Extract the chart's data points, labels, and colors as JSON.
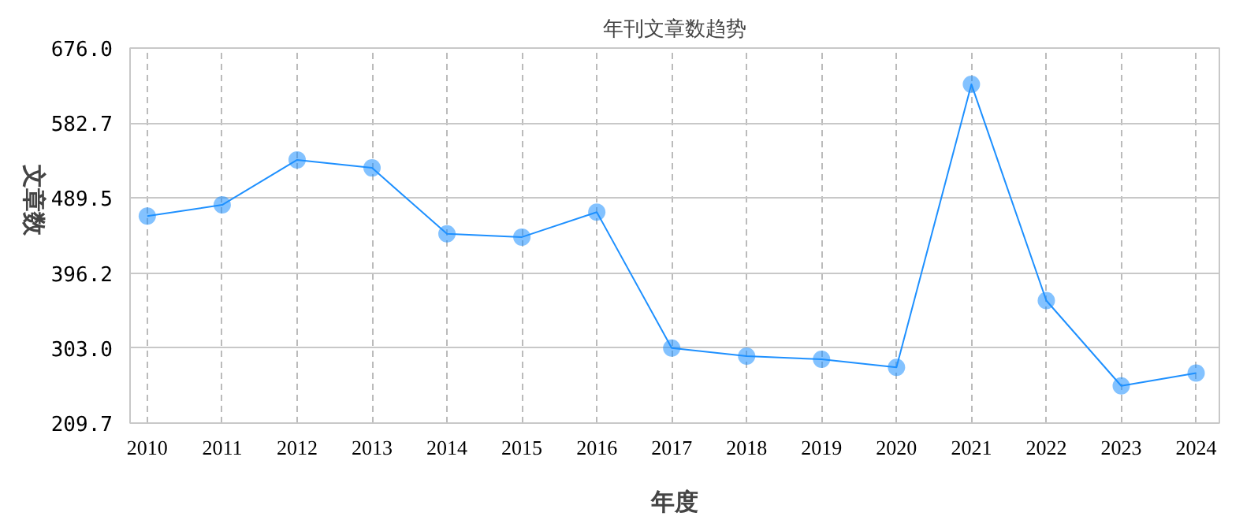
{
  "chart_data": {
    "type": "line",
    "title": "年刊文章数趋势",
    "xlabel": "年度",
    "ylabel": "文章数",
    "x": [
      2010,
      2011,
      2012,
      2013,
      2014,
      2015,
      2016,
      2017,
      2018,
      2019,
      2020,
      2021,
      2022,
      2023,
      2024
    ],
    "series": [
      {
        "color": "#1e90ff",
        "values": [
          467,
          481,
          537,
          527,
          445,
          441,
          472,
          303,
          293,
          289,
          279,
          631,
          362,
          256,
          272
        ]
      }
    ],
    "xlim": [
      2009.77,
      2024.31
    ],
    "xticks": [
      2010,
      2011,
      2012,
      2013,
      2014,
      2015,
      2016,
      2017,
      2018,
      2019,
      2020,
      2021,
      2022,
      2023,
      2024
    ],
    "ylim": [
      209.7,
      676.0
    ],
    "yticks": [
      {
        "value": 209.7,
        "label": "209.7"
      },
      {
        "value": 303.0,
        "label": "303.0"
      },
      {
        "value": 396.2,
        "label": "396.2"
      },
      {
        "value": 489.5,
        "label": "489.5"
      },
      {
        "value": 582.7,
        "label": "582.7"
      },
      {
        "value": 676.0,
        "label": "676.0"
      }
    ],
    "grid": true,
    "marker": "circle",
    "line_style": "solid"
  }
}
